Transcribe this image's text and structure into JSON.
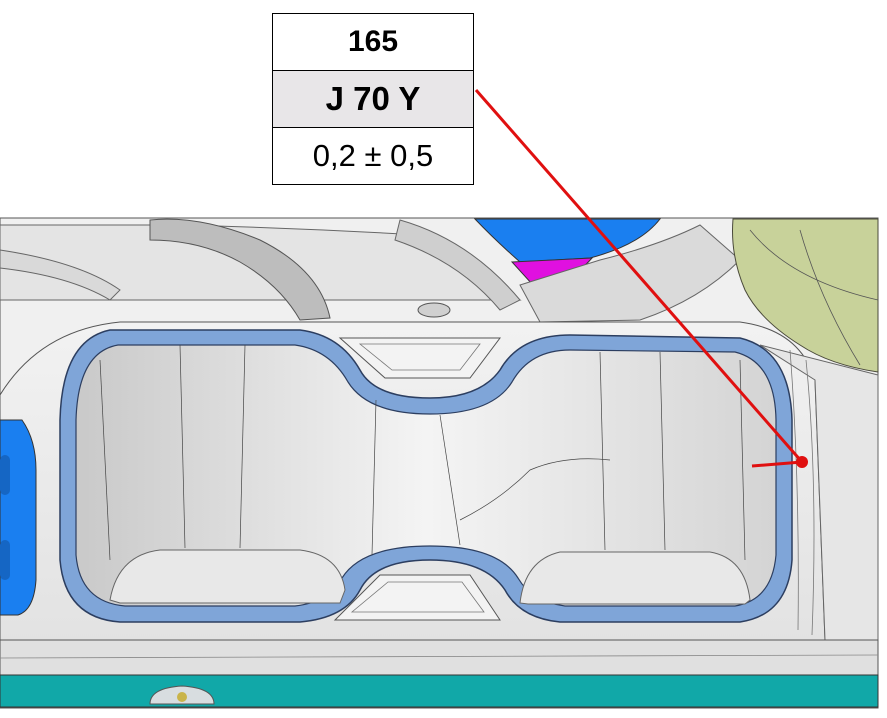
{
  "label": {
    "id": "165",
    "code": "J 70 Y",
    "tolerance": "0,2 ± 0,5"
  },
  "colors": {
    "leader_line": "#e01010",
    "cupholder_rim": "#7fa5d8",
    "console_body": "#ececec",
    "blue_part": "#1a7ff0",
    "magenta_part": "#e010e0",
    "olive_part": "#c8d29a",
    "teal_strip": "#11a8a8"
  }
}
